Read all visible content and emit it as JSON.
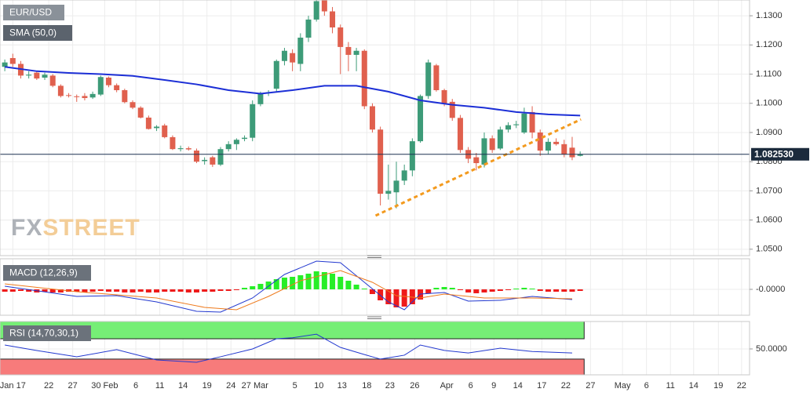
{
  "chart_data": [
    {
      "type": "candlestick",
      "title": "EUR/USD",
      "up_color": "#3d9b78",
      "down_color": "#e0604e",
      "candles": [
        [
          1.1125,
          1.115,
          1.111,
          1.114
        ],
        [
          1.1155,
          1.117,
          1.1125,
          1.1135
        ],
        [
          1.1135,
          1.1145,
          1.1085,
          1.1095
        ],
        [
          1.1095,
          1.111,
          1.1085,
          1.1098
        ],
        [
          1.1105,
          1.111,
          1.108,
          1.1085
        ],
        [
          1.1088,
          1.1105,
          1.108,
          1.1098
        ],
        [
          1.1095,
          1.11,
          1.1055,
          1.106
        ],
        [
          1.106,
          1.1065,
          1.102,
          1.1025
        ],
        [
          1.1028,
          1.1035,
          1.102,
          1.1026
        ],
        [
          1.1024,
          1.103,
          1.1005,
          1.1022
        ],
        [
          1.1025,
          1.1035,
          1.101,
          1.1018
        ],
        [
          1.102,
          1.104,
          1.1015,
          1.1032
        ],
        [
          1.103,
          1.1095,
          1.1025,
          1.109
        ],
        [
          1.1088,
          1.1092,
          1.1055,
          1.1062
        ],
        [
          1.1062,
          1.1068,
          1.1038,
          1.1045
        ],
        [
          1.1045,
          1.105,
          1.1,
          1.1004
        ],
        [
          1.1004,
          1.101,
          1.098,
          1.0985
        ],
        [
          1.0985,
          1.099,
          1.0948,
          1.0951
        ],
        [
          1.0951,
          1.0958,
          1.091,
          1.0912
        ],
        [
          1.0915,
          1.0925,
          1.0905,
          1.092
        ],
        [
          1.0924,
          1.093,
          1.088,
          1.0884
        ],
        [
          1.0884,
          1.089,
          1.084,
          1.0843
        ],
        [
          1.0843,
          1.0855,
          1.0835,
          1.0846
        ],
        [
          1.0846,
          1.0852,
          1.0838,
          1.0842
        ],
        [
          1.0838,
          1.0845,
          1.0795,
          1.08
        ],
        [
          1.0802,
          1.0815,
          1.079,
          1.0806
        ],
        [
          1.0815,
          1.082,
          1.0782,
          1.079
        ],
        [
          1.079,
          1.085,
          1.0785,
          1.0843
        ],
        [
          1.0843,
          1.087,
          1.0835,
          1.086
        ],
        [
          1.086,
          1.088,
          1.084,
          1.0875
        ],
        [
          1.0878,
          1.089,
          1.087,
          1.0882
        ],
        [
          1.0882,
          1.101,
          1.087,
          1.0997
        ],
        [
          1.0997,
          1.104,
          1.099,
          1.1035
        ],
        [
          1.1035,
          1.1045,
          1.1025,
          1.1038
        ],
        [
          1.105,
          1.115,
          1.104,
          1.1145
        ],
        [
          1.1145,
          1.119,
          1.113,
          1.118
        ],
        [
          1.1172,
          1.1185,
          1.111,
          1.114
        ],
        [
          1.1135,
          1.124,
          1.111,
          1.1225
        ],
        [
          1.1225,
          1.13,
          1.121,
          1.1287
        ],
        [
          1.1287,
          1.1355,
          1.128,
          1.135
        ],
        [
          1.1354,
          1.136,
          1.13,
          1.1315
        ],
        [
          1.1315,
          1.133,
          1.124,
          1.126
        ],
        [
          1.126,
          1.127,
          1.11,
          1.1193
        ],
        [
          1.1193,
          1.121,
          1.111,
          1.1166
        ],
        [
          1.1166,
          1.119,
          1.111,
          1.118
        ],
        [
          1.118,
          1.1185,
          1.098,
          1.099
        ],
        [
          1.099,
          1.1,
          1.09,
          1.091
        ],
        [
          1.091,
          1.092,
          1.065,
          1.069
        ],
        [
          1.069,
          1.079,
          1.067,
          1.07
        ],
        [
          1.0695,
          1.08,
          1.064,
          1.0735
        ],
        [
          1.0735,
          1.079,
          1.072,
          1.077
        ],
        [
          1.077,
          1.088,
          1.075,
          1.087
        ],
        [
          1.087,
          1.103,
          1.0865,
          1.1025
        ],
        [
          1.1025,
          1.115,
          1.1015,
          1.114
        ],
        [
          1.113,
          1.1135,
          1.104,
          1.1045
        ],
        [
          1.1045,
          1.105,
          1.099,
          1.1
        ],
        [
          1.1005,
          1.1015,
          1.094,
          1.095
        ],
        [
          1.095,
          1.096,
          1.083,
          1.084
        ],
        [
          1.084,
          1.085,
          1.0795,
          1.081
        ],
        [
          1.0815,
          1.083,
          1.077,
          1.0795
        ],
        [
          1.079,
          1.09,
          1.078,
          1.088
        ],
        [
          1.088,
          1.089,
          1.083,
          1.084
        ],
        [
          1.0845,
          1.092,
          1.084,
          1.091
        ],
        [
          1.091,
          1.0935,
          1.09,
          1.0925
        ],
        [
          1.0925,
          1.094,
          1.0915,
          1.0928
        ],
        [
          1.09,
          1.0985,
          1.0895,
          1.0965
        ],
        [
          1.097,
          1.099,
          1.088,
          1.09
        ],
        [
          1.09,
          1.091,
          1.082,
          1.0838
        ],
        [
          1.0838,
          1.088,
          1.0825,
          1.0868
        ],
        [
          1.0868,
          1.088,
          1.0855,
          1.086
        ],
        [
          1.086,
          1.0875,
          1.0815,
          1.0825
        ],
        [
          1.0848,
          1.0885,
          1.0805,
          1.0815
        ],
        [
          1.082,
          1.0835,
          1.0818,
          1.0825
        ]
      ],
      "series": [
        {
          "name": "SMA (50,0)",
          "color": "#1c2fd6",
          "x": [
            0,
            4,
            8,
            12,
            16,
            20,
            24,
            28,
            32,
            36,
            40,
            44,
            48,
            52,
            56,
            60,
            64,
            68,
            72
          ],
          "values": [
            1.1125,
            1.111,
            1.1104,
            1.11,
            1.1094,
            1.108,
            1.1065,
            1.1045,
            1.1033,
            1.1045,
            1.106,
            1.106,
            1.104,
            1.101,
            1.0995,
            1.0985,
            1.097,
            1.0962,
            1.0958
          ]
        }
      ],
      "trendline": {
        "color": "#f39a1e",
        "x": [
          46.4,
          72.1
        ],
        "values": [
          1.0615,
          1.0945
        ]
      },
      "last_price": {
        "value": 1.08253,
        "label": "1.082530"
      },
      "watermark": [
        "FX",
        "STREET"
      ],
      "ylim": [
        1.0478,
        1.1354
      ],
      "yticks": [
        {
          "value": 1.05,
          "label": "1.0500"
        },
        {
          "value": 1.06,
          "label": "1.0600"
        },
        {
          "value": 1.07,
          "label": "1.0700"
        },
        {
          "value": 1.08,
          "label": "1.0800"
        },
        {
          "value": 1.09,
          "label": "1.0900"
        },
        {
          "value": 1.1,
          "label": "1.1000"
        },
        {
          "value": 1.11,
          "label": "1.1100"
        },
        {
          "value": 1.12,
          "label": "1.1200"
        },
        {
          "value": 1.13,
          "label": "1.1300"
        }
      ]
    },
    {
      "type": "macd",
      "title": "MACD (12,26,9)",
      "up_color": "#27ee27",
      "down_color": "#ee1b1b",
      "histogram": [
        -0.0003,
        -0.0003,
        -0.0002,
        -0.0003,
        -0.0004,
        -0.0003,
        -0.0004,
        -0.0004,
        -0.0003,
        -0.0003,
        -0.0004,
        -0.0003,
        -0.0002,
        -0.0003,
        -0.0003,
        -0.0004,
        -0.0004,
        -0.0003,
        -0.0004,
        -0.0004,
        -0.0003,
        -0.0003,
        -0.0003,
        -0.0004,
        -0.0004,
        -0.0003,
        -0.0003,
        -0.0002,
        -0.0002,
        -0.0001,
        0.0002,
        0.0004,
        0.0007,
        0.001,
        0.0013,
        0.0015,
        0.0016,
        0.0018,
        0.002,
        0.0023,
        0.0022,
        0.002,
        0.0016,
        0.0011,
        0.0006,
        0.0001,
        -0.0006,
        -0.0014,
        -0.0019,
        -0.0023,
        -0.0022,
        -0.0019,
        -0.0013,
        -0.0005,
        0.0002,
        0.0003,
        0.0002,
        -0.0001,
        -0.0004,
        -0.0005,
        -0.0004,
        -0.0003,
        -0.0002,
        -0.0001,
        0.0001,
        0.0002,
        0.0001,
        -0.0002,
        -0.0003,
        -0.0003,
        -0.0003,
        -0.0003,
        -0.0002
      ],
      "lines": [
        {
          "color": "#2238cf",
          "x": [
            0,
            9,
            14,
            19,
            24,
            27,
            31,
            35,
            39,
            42,
            45,
            48,
            50,
            52,
            55,
            58,
            62,
            66,
            71
          ],
          "values": [
            0.0004,
            -0.0009,
            -0.0008,
            -0.0016,
            -0.0028,
            -0.0029,
            -0.0011,
            0.0019,
            0.0036,
            0.0034,
            0.0009,
            -0.0016,
            -0.0026,
            -0.0006,
            -0.0004,
            -0.0015,
            -0.0014,
            -0.0009,
            -0.0013
          ]
        },
        {
          "color": "#ee7a1c",
          "x": [
            0,
            9,
            19,
            25,
            29,
            33,
            37,
            42,
            46,
            49,
            52,
            55,
            60,
            66,
            71
          ],
          "values": [
            0.0007,
            -0.0003,
            -0.0011,
            -0.0023,
            -0.0026,
            -0.0009,
            0.0011,
            0.0024,
            0.0009,
            -0.0008,
            -0.0011,
            -0.0006,
            -0.0011,
            -0.0011,
            -0.0012
          ]
        }
      ],
      "ylim": [
        -0.0033,
        0.0039
      ],
      "yticks": [
        {
          "value": 0,
          "label": "-0.0000"
        }
      ]
    },
    {
      "type": "rsi",
      "title": "RSI (14,70,30,1)",
      "overbought": 70,
      "oversold": 30,
      "line": {
        "color": "#2238cf",
        "x": [
          0,
          4,
          9,
          14,
          19,
          24,
          27,
          31,
          34,
          36,
          39,
          42,
          45,
          47,
          50,
          52,
          55,
          58,
          62,
          66,
          71
        ],
        "values": [
          57.7,
          46.9,
          34.6,
          48.5,
          28.4,
          23.8,
          34.6,
          50,
          70,
          72,
          79,
          53,
          39,
          30,
          37.7,
          57.7,
          47,
          42,
          51.5,
          45,
          42
        ]
      },
      "ylim": [
        -1,
        104
      ],
      "yticks": [
        {
          "value": 50,
          "label": "50.0000"
        }
      ],
      "xlim": [
        -0.6,
        93.2
      ],
      "xticks": [
        {
          "value": 1,
          "label": "Jan 17"
        },
        {
          "value": 5.5,
          "label": "22"
        },
        {
          "value": 8.5,
          "label": "27"
        },
        {
          "value": 12.5,
          "label": "30 Feb"
        },
        {
          "value": 16.4,
          "label": "6"
        },
        {
          "value": 19.4,
          "label": "11"
        },
        {
          "value": 22.3,
          "label": "14"
        },
        {
          "value": 25.3,
          "label": "19"
        },
        {
          "value": 28.3,
          "label": "24"
        },
        {
          "value": 31.3,
          "label": "27 Mar"
        },
        {
          "value": 36.3,
          "label": "5"
        },
        {
          "value": 39.3,
          "label": "10"
        },
        {
          "value": 42.2,
          "label": "13"
        },
        {
          "value": 45.3,
          "label": "18"
        },
        {
          "value": 48.2,
          "label": "23"
        },
        {
          "value": 51.3,
          "label": "26"
        },
        {
          "value": 55.3,
          "label": "Apr"
        },
        {
          "value": 58.3,
          "label": "6"
        },
        {
          "value": 61.2,
          "label": "9"
        },
        {
          "value": 64.2,
          "label": "14"
        },
        {
          "value": 67.2,
          "label": "17"
        },
        {
          "value": 70.2,
          "label": "22"
        },
        {
          "value": 73.3,
          "label": "27"
        },
        {
          "value": 77.3,
          "label": "May"
        },
        {
          "value": 80.3,
          "label": "6"
        },
        {
          "value": 83.3,
          "label": "11"
        },
        {
          "value": 86.2,
          "label": "14"
        },
        {
          "value": 89.3,
          "label": "19"
        },
        {
          "value": 92.2,
          "label": "22"
        }
      ]
    }
  ]
}
